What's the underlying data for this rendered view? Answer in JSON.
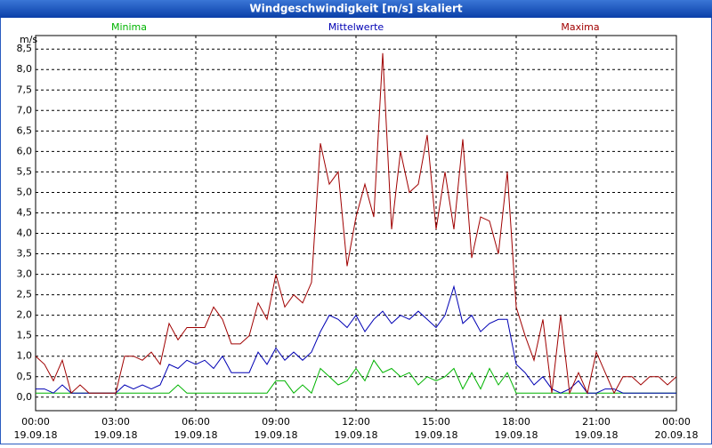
{
  "window_title": "Windgeschwindigkeit [m/s] skaliert",
  "chart_data": {
    "type": "line",
    "unit_label": "m/s",
    "x": [
      0,
      20,
      40,
      60,
      80,
      100,
      120,
      140,
      160,
      180,
      200,
      220,
      240,
      260,
      280,
      300,
      320,
      340,
      360,
      380,
      400,
      420,
      440,
      460,
      480,
      500,
      520,
      540,
      560,
      580,
      600,
      620,
      640,
      660,
      680,
      700,
      720,
      740,
      760,
      780,
      800,
      820,
      840,
      860,
      880,
      900,
      920,
      940,
      960,
      980,
      1000,
      1020,
      1040,
      1060,
      1080,
      1100,
      1120,
      1140,
      1160,
      1180,
      1200,
      1220,
      1240,
      1260,
      1280,
      1300,
      1320,
      1340,
      1360,
      1380,
      1400,
      1420,
      1440
    ],
    "series": [
      {
        "name": "Minima",
        "color": "#00b400",
        "values": [
          0.1,
          0.1,
          0.1,
          0.1,
          0.1,
          0.1,
          0.1,
          0.1,
          0.1,
          0.1,
          0.1,
          0.1,
          0.1,
          0.1,
          0.1,
          0.1,
          0.3,
          0.1,
          0.1,
          0.1,
          0.1,
          0.1,
          0.1,
          0.1,
          0.1,
          0.1,
          0.1,
          0.4,
          0.4,
          0.1,
          0.3,
          0.1,
          0.7,
          0.5,
          0.3,
          0.4,
          0.7,
          0.4,
          0.9,
          0.6,
          0.7,
          0.5,
          0.6,
          0.3,
          0.5,
          0.4,
          0.5,
          0.7,
          0.2,
          0.6,
          0.2,
          0.7,
          0.3,
          0.6,
          0.1,
          0.1,
          0.1,
          0.1,
          0.1,
          0.1,
          0.1,
          0.1,
          0.1,
          0.1,
          0.1,
          0.1,
          0.1,
          0.1,
          0.1,
          0.1,
          0.1,
          0.1,
          0.1
        ]
      },
      {
        "name": "Mittelwerte",
        "color": "#0000b4",
        "values": [
          0.2,
          0.2,
          0.1,
          0.3,
          0.1,
          0.1,
          0.1,
          0.1,
          0.1,
          0.1,
          0.3,
          0.2,
          0.3,
          0.2,
          0.3,
          0.8,
          0.7,
          0.9,
          0.8,
          0.9,
          0.7,
          1.0,
          0.6,
          0.6,
          0.6,
          1.1,
          0.8,
          1.2,
          0.9,
          1.1,
          0.9,
          1.1,
          1.6,
          2.0,
          1.9,
          1.7,
          2.0,
          1.6,
          1.9,
          2.1,
          1.8,
          2.0,
          1.9,
          2.1,
          1.9,
          1.7,
          2.0,
          2.7,
          1.8,
          2.0,
          1.6,
          1.8,
          1.9,
          1.9,
          0.8,
          0.6,
          0.3,
          0.5,
          0.2,
          0.1,
          0.2,
          0.4,
          0.1,
          0.1,
          0.2,
          0.2,
          0.1,
          0.1,
          0.1,
          0.1,
          0.1,
          0.1,
          0.1
        ]
      },
      {
        "name": "Maxima",
        "color": "#a00000",
        "values": [
          1.0,
          0.8,
          0.4,
          0.9,
          0.1,
          0.3,
          0.1,
          0.1,
          0.1,
          0.1,
          1.0,
          1.0,
          0.9,
          1.1,
          0.8,
          1.8,
          1.4,
          1.7,
          1.7,
          1.7,
          2.2,
          1.9,
          1.3,
          1.3,
          1.5,
          2.3,
          1.9,
          3.0,
          2.2,
          2.5,
          2.3,
          2.8,
          6.2,
          5.2,
          5.5,
          3.2,
          4.4,
          5.2,
          4.4,
          8.4,
          4.1,
          6.0,
          5.0,
          5.2,
          6.4,
          4.1,
          5.5,
          4.1,
          6.3,
          3.4,
          4.4,
          4.3,
          3.5,
          5.5,
          2.2,
          1.5,
          0.9,
          1.9,
          0.1,
          2.0,
          0.1,
          0.6,
          0.1,
          1.1,
          0.6,
          0.1,
          0.5,
          0.5,
          0.3,
          0.5,
          0.5,
          0.3,
          0.5
        ]
      }
    ],
    "xlim": [
      0,
      1440
    ],
    "xticks": [
      {
        "value": 0,
        "label": "00:00"
      },
      {
        "value": 180,
        "label": "03:00"
      },
      {
        "value": 360,
        "label": "06:00"
      },
      {
        "value": 540,
        "label": "09:00"
      },
      {
        "value": 720,
        "label": "12:00"
      },
      {
        "value": 900,
        "label": "15:00"
      },
      {
        "value": 1080,
        "label": "18:00"
      },
      {
        "value": 1260,
        "label": "21:00"
      },
      {
        "value": 1440,
        "label": "00:00"
      }
    ],
    "xtick_dates": [
      "19.09.18",
      "19.09.18",
      "19.09.18",
      "19.09.18",
      "19.09.18",
      "19.09.18",
      "19.09.18",
      "19.09.18",
      "20.09.18"
    ],
    "ylim": [
      -0.33,
      8.83
    ],
    "yticks": [
      {
        "value": 0,
        "label": "0,0"
      },
      {
        "value": 0.5,
        "label": "0,5"
      },
      {
        "value": 1,
        "label": "1,0"
      },
      {
        "value": 1.5,
        "label": "1,5"
      },
      {
        "value": 2,
        "label": "2,0"
      },
      {
        "value": 2.5,
        "label": "2,5"
      },
      {
        "value": 3,
        "label": "3,0"
      },
      {
        "value": 3.5,
        "label": "3,5"
      },
      {
        "value": 4,
        "label": "4,0"
      },
      {
        "value": 4.5,
        "label": "4,5"
      },
      {
        "value": 5,
        "label": "5,0"
      },
      {
        "value": 5.5,
        "label": "5,5"
      },
      {
        "value": 6,
        "label": "6,0"
      },
      {
        "value": 6.5,
        "label": "6,5"
      },
      {
        "value": 7,
        "label": "7,0"
      },
      {
        "value": 7.5,
        "label": "7,5"
      },
      {
        "value": 8,
        "label": "8,0"
      },
      {
        "value": 8.5,
        "label": "8,5"
      }
    ],
    "grid": true
  }
}
